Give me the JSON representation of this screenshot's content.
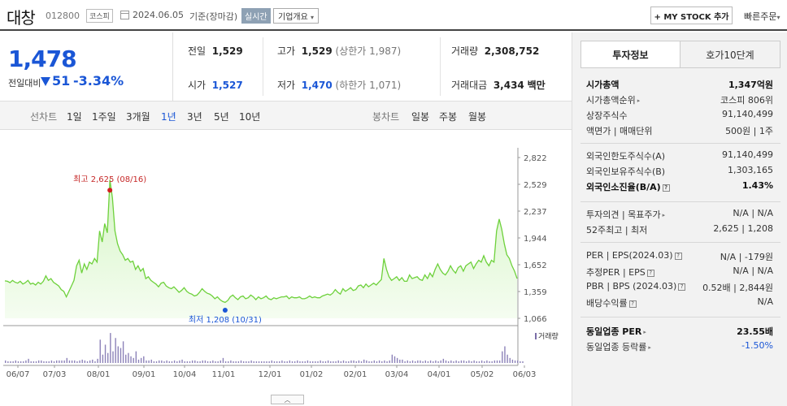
{
  "header": {
    "name": "대창",
    "code": "012800",
    "market": "코스피",
    "date": "2024.06.05",
    "basis": "기준(장마감)",
    "live_label": "실시간",
    "overview_label": "기업개요",
    "overview_arrow": "▾",
    "mystock_label": "+ MY STOCK 추가",
    "quick_order": "빠른주문",
    "quick_arrow": "▾"
  },
  "price": {
    "current": "1,478",
    "change_label": "전일대비",
    "change": "51",
    "change_pct": "-3.34%"
  },
  "stats": {
    "prev_close_label": "전일",
    "prev_close": "1,529",
    "open_label": "시가",
    "open": "1,527",
    "high_label": "고가",
    "high": "1,529",
    "upper_limit": "(상한가 1,987)",
    "low_label": "저가",
    "low": "1,470",
    "lower_limit": "(하한가 1,071)",
    "volume_label": "거래량",
    "volume": "2,308,752",
    "amount_label": "거래대금",
    "amount": "3,434",
    "amount_unit": "백만"
  },
  "periods": {
    "line_label": "선차트",
    "line_items": [
      "1일",
      "1주일",
      "3개월",
      "1년",
      "3년",
      "5년",
      "10년"
    ],
    "selected": "1년",
    "candle_label": "봉차트",
    "candle_items": [
      "일봉",
      "주봉",
      "월봉"
    ]
  },
  "chart_data": {
    "type": "area",
    "ylim": [
      1066,
      2822
    ],
    "yticks": [
      "2,822",
      "2,529",
      "2,237",
      "1,944",
      "1,652",
      "1,359",
      "1,066"
    ],
    "xticks": [
      "06/07",
      "07/03",
      "08/01",
      "09/01",
      "10/04",
      "11/01",
      "12/01",
      "01/02",
      "02/01",
      "03/04",
      "04/01",
      "05/02",
      "06/03"
    ],
    "high_annotation": "최고 2,625 (08/16)",
    "low_annotation": "최저 1,208 (10/31)",
    "volume_legend": "거래량",
    "line_color": "#6ed13c",
    "series": [
      1475,
      1470,
      1455,
      1480,
      1460,
      1450,
      1470,
      1440,
      1455,
      1480,
      1440,
      1450,
      1430,
      1460,
      1440,
      1470,
      1530,
      1480,
      1500,
      1460,
      1440,
      1420,
      1380,
      1360,
      1300,
      1360,
      1420,
      1480,
      1640,
      1700,
      1560,
      1660,
      1600,
      1680,
      1660,
      1720,
      1680,
      2020,
      1900,
      2100,
      2000,
      2580,
      2380,
      2020,
      1880,
      1800,
      1760,
      1700,
      1720,
      1680,
      1690,
      1600,
      1640,
      1580,
      1610,
      1500,
      1520,
      1480,
      1460,
      1440,
      1410,
      1450,
      1460,
      1420,
      1400,
      1390,
      1410,
      1380,
      1350,
      1370,
      1400,
      1360,
      1340,
      1330,
      1310,
      1320,
      1350,
      1390,
      1360,
      1340,
      1330,
      1310,
      1280,
      1300,
      1270,
      1250,
      1240,
      1260,
      1300,
      1320,
      1290,
      1270,
      1300,
      1310,
      1280,
      1290,
      1320,
      1300,
      1270,
      1300,
      1280,
      1290,
      1310,
      1280,
      1270,
      1290,
      1280,
      1290,
      1300,
      1300,
      1310,
      1280,
      1300,
      1290,
      1290,
      1300,
      1280,
      1280,
      1290,
      1310,
      1290,
      1300,
      1290,
      1290,
      1310,
      1320,
      1330,
      1320,
      1340,
      1380,
      1350,
      1330,
      1390,
      1360,
      1380,
      1400,
      1370,
      1380,
      1420,
      1430,
      1400,
      1440,
      1410,
      1430,
      1450,
      1430,
      1460,
      1490,
      1720,
      1600,
      1520,
      1480,
      1500,
      1520,
      1480,
      1510,
      1470,
      1470,
      1540,
      1500,
      1510,
      1520,
      1490,
      1480,
      1540,
      1500,
      1560,
      1520,
      1600,
      1660,
      1600,
      1560,
      1540,
      1580,
      1640,
      1590,
      1560,
      1620,
      1640,
      1580,
      1640,
      1660,
      1680,
      1610,
      1660,
      1700,
      1680,
      1750,
      1680,
      1640,
      1700,
      1680,
      2020,
      2150,
      2040,
      1880,
      1760,
      1720,
      1640,
      1580,
      1500
    ],
    "volume": [
      3,
      2,
      2,
      2,
      3,
      2,
      2,
      2,
      3,
      5,
      2,
      2,
      2,
      3,
      3,
      2,
      2,
      2,
      3,
      2,
      3,
      3,
      3,
      3,
      6,
      3,
      3,
      3,
      2,
      3,
      4,
      3,
      2,
      3,
      4,
      2,
      5,
      28,
      10,
      22,
      12,
      36,
      14,
      30,
      20,
      18,
      26,
      10,
      12,
      8,
      6,
      14,
      4,
      6,
      8,
      3,
      3,
      4,
      2,
      2,
      3,
      3,
      2,
      3,
      2,
      2,
      3,
      2,
      3,
      4,
      2,
      2,
      2,
      3,
      3,
      2,
      2,
      3,
      3,
      2,
      2,
      3,
      2,
      2,
      3,
      6,
      2,
      2,
      3,
      2,
      2,
      2,
      3,
      2,
      2,
      2,
      3,
      2,
      2,
      2,
      2,
      2,
      2,
      2,
      3,
      2,
      2,
      2,
      3,
      2,
      2,
      3,
      2,
      2,
      3,
      2,
      2,
      2,
      3,
      2,
      2,
      2,
      2,
      3,
      2,
      2,
      3,
      2,
      2,
      2,
      3,
      2,
      3,
      2,
      2,
      3,
      3,
      2,
      3,
      2,
      4,
      3,
      2,
      2,
      3,
      2,
      3,
      2,
      3,
      2,
      3,
      10,
      8,
      6,
      4,
      4,
      2,
      3,
      2,
      3,
      2,
      3,
      3,
      2,
      3,
      2,
      3,
      2,
      3,
      2,
      3,
      5,
      3,
      2,
      3,
      2,
      3,
      2,
      3,
      3,
      2,
      3,
      2,
      3,
      2,
      2,
      3,
      2,
      3,
      2,
      2,
      3,
      3,
      3,
      14,
      20,
      10,
      6,
      4,
      3,
      3,
      2,
      2
    ]
  },
  "invest": {
    "tabs": [
      "투자정보",
      "호가10단계"
    ],
    "rows1": [
      {
        "label": "시가총액",
        "value": "1,347억원",
        "bold": true
      },
      {
        "label": "시가총액순위",
        "value": "코스피 806위",
        "arrow": true
      },
      {
        "label": "상장주식수",
        "value": "91,140,499"
      },
      {
        "label": "액면가 | 매매단위",
        "value": "500원 | 1주"
      }
    ],
    "rows2": [
      {
        "label": "외국인한도주식수(A)",
        "value": "91,140,499"
      },
      {
        "label": "외국인보유주식수(B)",
        "value": "1,303,165"
      },
      {
        "label": "외국인소진율(B/A)",
        "value": "1.43%",
        "bold": true,
        "q": true
      }
    ],
    "rows3": [
      {
        "label": "투자의견 | 목표주가",
        "value": "N/A | N/A",
        "arrow": true
      },
      {
        "label": "52주최고 | 최저",
        "value": "2,625 | 1,208"
      }
    ],
    "rows4": [
      {
        "label": "PER | EPS(2024.03)",
        "value": "N/A | -179원",
        "q": true
      },
      {
        "label": "추정PER | EPS",
        "value": "N/A | N/A",
        "q": true
      },
      {
        "label": "PBR | BPS (2024.03)",
        "value": "0.52배 | 2,844원",
        "q": true
      },
      {
        "label": "배당수익률",
        "value": "N/A",
        "q": true
      }
    ],
    "rows5": [
      {
        "label": "동일업종 PER",
        "value": "23.55배",
        "bold": true,
        "arrow": true
      },
      {
        "label": "동일업종 등락률",
        "value": "-1.50%",
        "neg": true,
        "arrow": true
      }
    ]
  }
}
